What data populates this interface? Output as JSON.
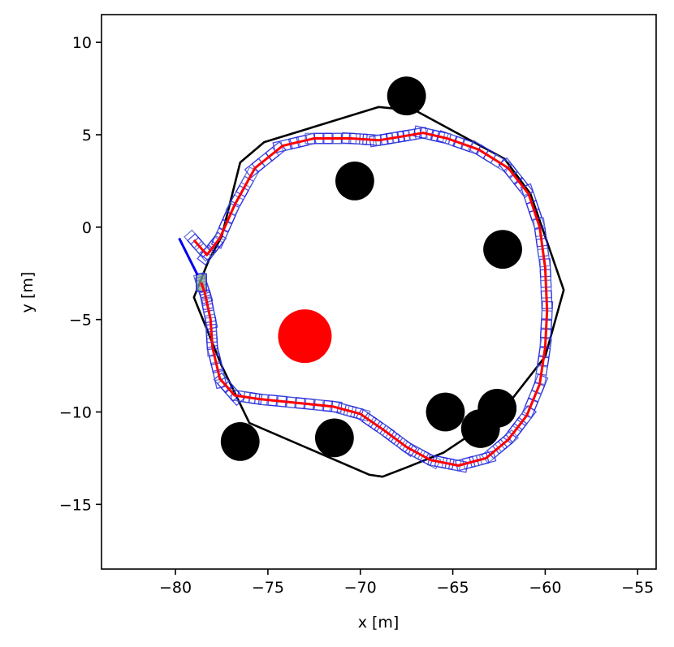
{
  "chart_data": {
    "type": "scatter",
    "title": "",
    "xlabel": "x [m]",
    "ylabel": "y [m]",
    "xlim": [
      -84,
      -54
    ],
    "ylim": [
      -18.5,
      11.5
    ],
    "grid": false,
    "xticks": [
      -80,
      -75,
      -70,
      -65,
      -60,
      -55
    ],
    "yticks": [
      -15,
      -10,
      -5,
      0,
      5,
      10
    ],
    "xtick_labels": [
      "−80",
      "−75",
      "−70",
      "−65",
      "−60",
      "−55"
    ],
    "ytick_labels": [
      "−15",
      "−10",
      "−5",
      "0",
      "5",
      "10"
    ],
    "colors": {
      "boundary": "#000000",
      "footprint": "#1f1fe0",
      "footprint_alt": "#4a5fd0",
      "path": "#ff0000",
      "start_marker": "#ff0000",
      "obstacle": "#000000",
      "start_fill": "#7fa08a"
    },
    "boundary_polygon": [
      [
        -76.5,
        3.5
      ],
      [
        -75.2,
        4.6
      ],
      [
        -69.0,
        6.5
      ],
      [
        -67.0,
        6.3
      ],
      [
        -62.2,
        3.7
      ],
      [
        -60.8,
        1.8
      ],
      [
        -59.0,
        -3.4
      ],
      [
        -60.0,
        -7.0
      ],
      [
        -62.5,
        -10.2
      ],
      [
        -65.5,
        -12.2
      ],
      [
        -67.5,
        -13.0
      ],
      [
        -68.8,
        -13.5
      ],
      [
        -69.5,
        -13.4
      ],
      [
        -76.0,
        -10.6
      ],
      [
        -77.5,
        -7.5
      ],
      [
        -79.0,
        -3.8
      ],
      [
        -78.2,
        -1.8
      ],
      [
        -77.5,
        -0.5
      ]
    ],
    "path": [
      [
        -79.0,
        -0.7
      ],
      [
        -78.3,
        -1.5
      ],
      [
        -77.6,
        -0.6
      ],
      [
        -76.8,
        1.2
      ],
      [
        -75.7,
        3.2
      ],
      [
        -74.2,
        4.4
      ],
      [
        -72.5,
        4.8
      ],
      [
        -70.5,
        4.8
      ],
      [
        -69.0,
        4.7
      ],
      [
        -67.8,
        4.9
      ],
      [
        -66.6,
        5.1
      ],
      [
        -65.3,
        4.8
      ],
      [
        -63.6,
        4.2
      ],
      [
        -62.0,
        3.2
      ],
      [
        -60.9,
        1.8
      ],
      [
        -60.3,
        0.0
      ],
      [
        -60.0,
        -2.2
      ],
      [
        -59.9,
        -4.5
      ],
      [
        -60.0,
        -6.5
      ],
      [
        -60.3,
        -8.5
      ],
      [
        -61.0,
        -10.2
      ],
      [
        -62.0,
        -11.5
      ],
      [
        -63.2,
        -12.5
      ],
      [
        -64.7,
        -12.9
      ],
      [
        -66.2,
        -12.6
      ],
      [
        -67.5,
        -11.9
      ],
      [
        -68.7,
        -11.0
      ],
      [
        -70.0,
        -10.1
      ],
      [
        -71.5,
        -9.7
      ],
      [
        -73.5,
        -9.5
      ],
      [
        -75.5,
        -9.3
      ],
      [
        -76.8,
        -9.1
      ],
      [
        -77.6,
        -8.2
      ],
      [
        -78.0,
        -6.5
      ],
      [
        -78.1,
        -5.0
      ],
      [
        -78.4,
        -3.6
      ],
      [
        -78.6,
        -3.0
      ]
    ],
    "start_heading_line": [
      [
        -79.8,
        -0.6
      ],
      [
        -78.8,
        -2.6
      ]
    ],
    "start_box_center": [
      -78.6,
      -3.0
    ],
    "footprint_size": [
      0.95,
      0.55
    ],
    "obstacles": [
      {
        "x": -67.5,
        "y": 7.1,
        "r": 1.05
      },
      {
        "x": -70.3,
        "y": 2.5,
        "r": 1.05
      },
      {
        "x": -62.3,
        "y": -1.2,
        "r": 1.05
      },
      {
        "x": -65.4,
        "y": -10.0,
        "r": 1.05
      },
      {
        "x": -62.6,
        "y": -9.8,
        "r": 1.05
      },
      {
        "x": -63.5,
        "y": -10.9,
        "r": 1.05
      },
      {
        "x": -71.4,
        "y": -11.4,
        "r": 1.05
      },
      {
        "x": -76.5,
        "y": -11.6,
        "r": 1.05
      }
    ],
    "start_marker": {
      "x": -73.0,
      "y": -5.9,
      "r": 1.45
    }
  }
}
